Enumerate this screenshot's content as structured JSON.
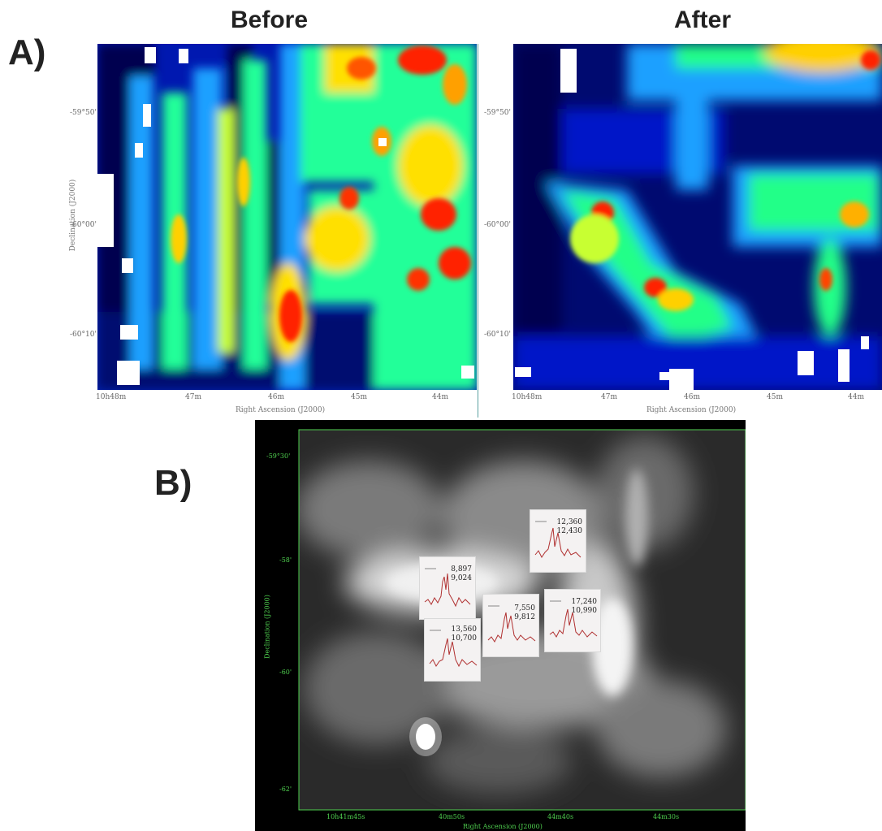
{
  "panel_a": {
    "label": "A)",
    "before_title": "Before",
    "after_title": "After",
    "dec_label": "Declination (J2000)",
    "ra_label": "Right Ascension (J2000)",
    "dec_ticks": [
      "-59°50'",
      "-60°00'",
      "-60°10'"
    ],
    "ra_ticks": [
      "10h48m",
      "47m",
      "46m",
      "45m",
      "44m"
    ]
  },
  "panel_b": {
    "label": "B)",
    "dec_label": "Declination (J2000)",
    "ra_label": "Right Ascension (J2000)",
    "dec_ticks": [
      "-59°30'",
      "-58'",
      "-60'",
      "-62'"
    ],
    "ra_ticks": [
      "10h41m45s",
      "40m50s",
      "44m40s",
      "44m30s"
    ],
    "insets": [
      {
        "v1": "8,897",
        "v2": "9,024"
      },
      {
        "v1": "12,360",
        "v2": "12,430"
      },
      {
        "v1": "7,550",
        "v2": "9,812"
      },
      {
        "v1": "13,560",
        "v2": "10,700"
      },
      {
        "v1": "17,240",
        "v2": "10,990"
      }
    ]
  },
  "colors": {
    "colormap": [
      "#00004a",
      "#0018c8",
      "#00a8ff",
      "#22ff88",
      "#ffee00",
      "#ff1a00"
    ],
    "axis_green": "#4fd04f"
  }
}
